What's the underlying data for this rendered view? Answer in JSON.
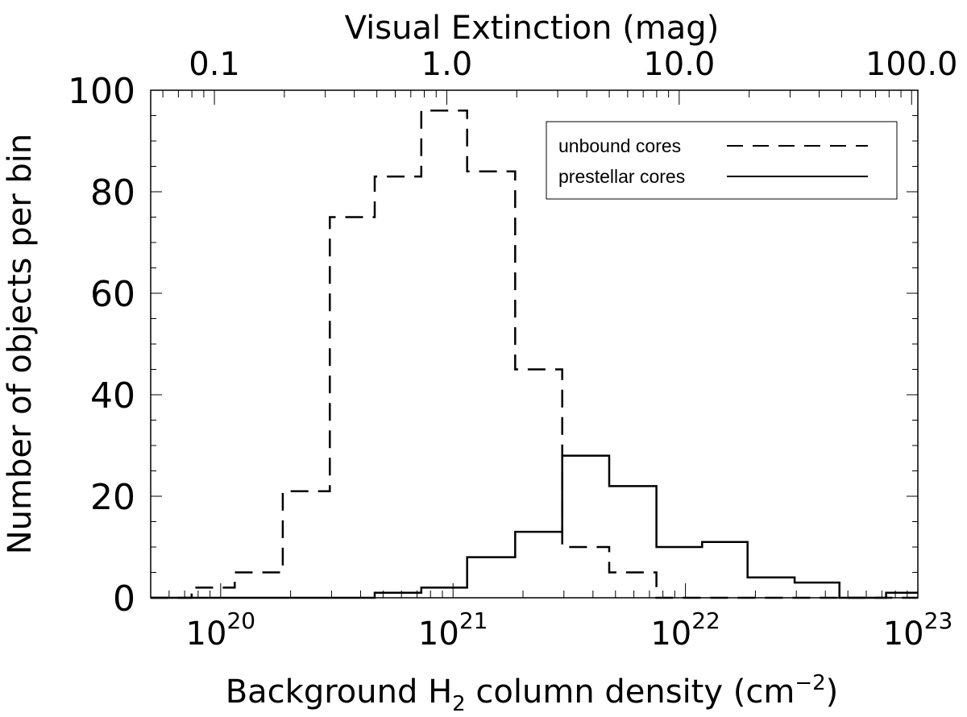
{
  "chart_data": {
    "type": "step-histogram",
    "xlabel": "Background H",
    "xlabel_sub": "2",
    "xlabel_tail": " column density (cm",
    "xlabel_sup": "−2",
    "xlabel_end": ")",
    "top_axis_label": "Visual Extinction (mag)",
    "ylabel": "Number of objects per bin",
    "x_scale": "log",
    "xlim": [
      5e+19,
      1e+23
    ],
    "ylim": [
      0,
      100
    ],
    "x_ticks": [
      {
        "value": 1e+20,
        "base": "10",
        "exp": "20"
      },
      {
        "value": 1e+21,
        "base": "10",
        "exp": "21"
      },
      {
        "value": 1e+22,
        "base": "10",
        "exp": "22"
      },
      {
        "value": 1e+23,
        "base": "10",
        "exp": "23"
      }
    ],
    "y_ticks": [
      {
        "value": 0,
        "label": "0"
      },
      {
        "value": 20,
        "label": "20"
      },
      {
        "value": 40,
        "label": "40"
      },
      {
        "value": 60,
        "label": "60"
      },
      {
        "value": 80,
        "label": "80"
      },
      {
        "value": 100,
        "label": "100"
      }
    ],
    "top_ticks": [
      {
        "value": 0.1,
        "label": "0.1"
      },
      {
        "value": 1.0,
        "label": "1.0"
      },
      {
        "value": 10.0,
        "label": "10.0"
      },
      {
        "value": 100.0,
        "label": "100.0"
      }
    ],
    "top_axis_nh_per_av": 9.4e+20,
    "bin_edges": [
      5e+19,
      7.5e+19,
      1.15e+20,
      1.85e+20,
      2.95e+20,
      4.6e+20,
      7.3e+20,
      1.15e+21,
      1.85e+21,
      2.95e+21,
      4.7e+21,
      7.5e+21,
      1.18e+22,
      1.85e+22,
      2.95e+22,
      4.6e+22,
      7.3e+22,
      1e+23
    ],
    "series": [
      {
        "name": "unbound cores",
        "style": "dashed",
        "values": [
          0,
          2,
          5,
          21,
          75,
          83,
          96,
          84,
          45,
          10,
          5,
          0,
          0,
          0,
          0,
          0,
          0
        ]
      },
      {
        "name": "prestellar cores",
        "style": "solid",
        "values": [
          0,
          0,
          0,
          0,
          0,
          1,
          2,
          8,
          13,
          28,
          22,
          10,
          11,
          4,
          3,
          0,
          1
        ]
      }
    ],
    "legend_position": "top-right",
    "grid": false
  }
}
